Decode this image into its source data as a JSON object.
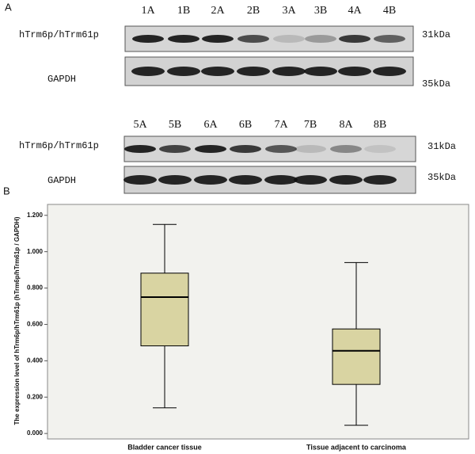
{
  "panel_a": {
    "label": "A",
    "rows": [
      {
        "lanes": [
          "1A",
          "1B",
          "2A",
          "2B",
          "3A",
          "3B",
          "4A",
          "4B"
        ],
        "target_label": "hTrm6p/hTrm61p",
        "target_kda": "31kDa",
        "control_label": "GAPDH",
        "control_kda": "35kDa"
      },
      {
        "lanes": [
          "5A",
          "5B",
          "6A",
          "6B",
          "7A",
          "7B",
          "8A",
          "8B"
        ],
        "target_label": "hTrm6p/hTrm61p",
        "target_kda": "31kDa",
        "control_label": "GAPDH",
        "control_kda": "35kDa"
      }
    ]
  },
  "panel_b": {
    "label": "B",
    "chart_data": {
      "type": "box",
      "y_label": "The expression level of hTrm6p/hTrm61p (hTrm6p/hTrm61p / GAPDH)",
      "categories": [
        "Bladder cancer tissue",
        "Tissue adjacent to carcinoma"
      ],
      "series": [
        {
          "name": null,
          "color": "#d9d4a2",
          "whisker_low": [
            0.141,
            0.045
          ],
          "q1": [
            0.482,
            0.27
          ],
          "median": [
            0.75,
            0.455
          ],
          "q3": [
            0.882,
            0.575
          ],
          "whisker_high": [
            1.15,
            0.94
          ]
        }
      ],
      "ylim": [
        -0.03,
        1.26
      ],
      "yticks": [
        {
          "value": 0,
          "label": "0.000"
        },
        {
          "value": 0.2,
          "label": "0.200"
        },
        {
          "value": 0.4,
          "label": "0.400"
        },
        {
          "value": 0.6,
          "label": "0.600"
        },
        {
          "value": 0.8,
          "label": "0.800"
        },
        {
          "value": 1.0,
          "label": "1.000"
        },
        {
          "value": 1.2,
          "label": "1.200"
        }
      ]
    }
  }
}
